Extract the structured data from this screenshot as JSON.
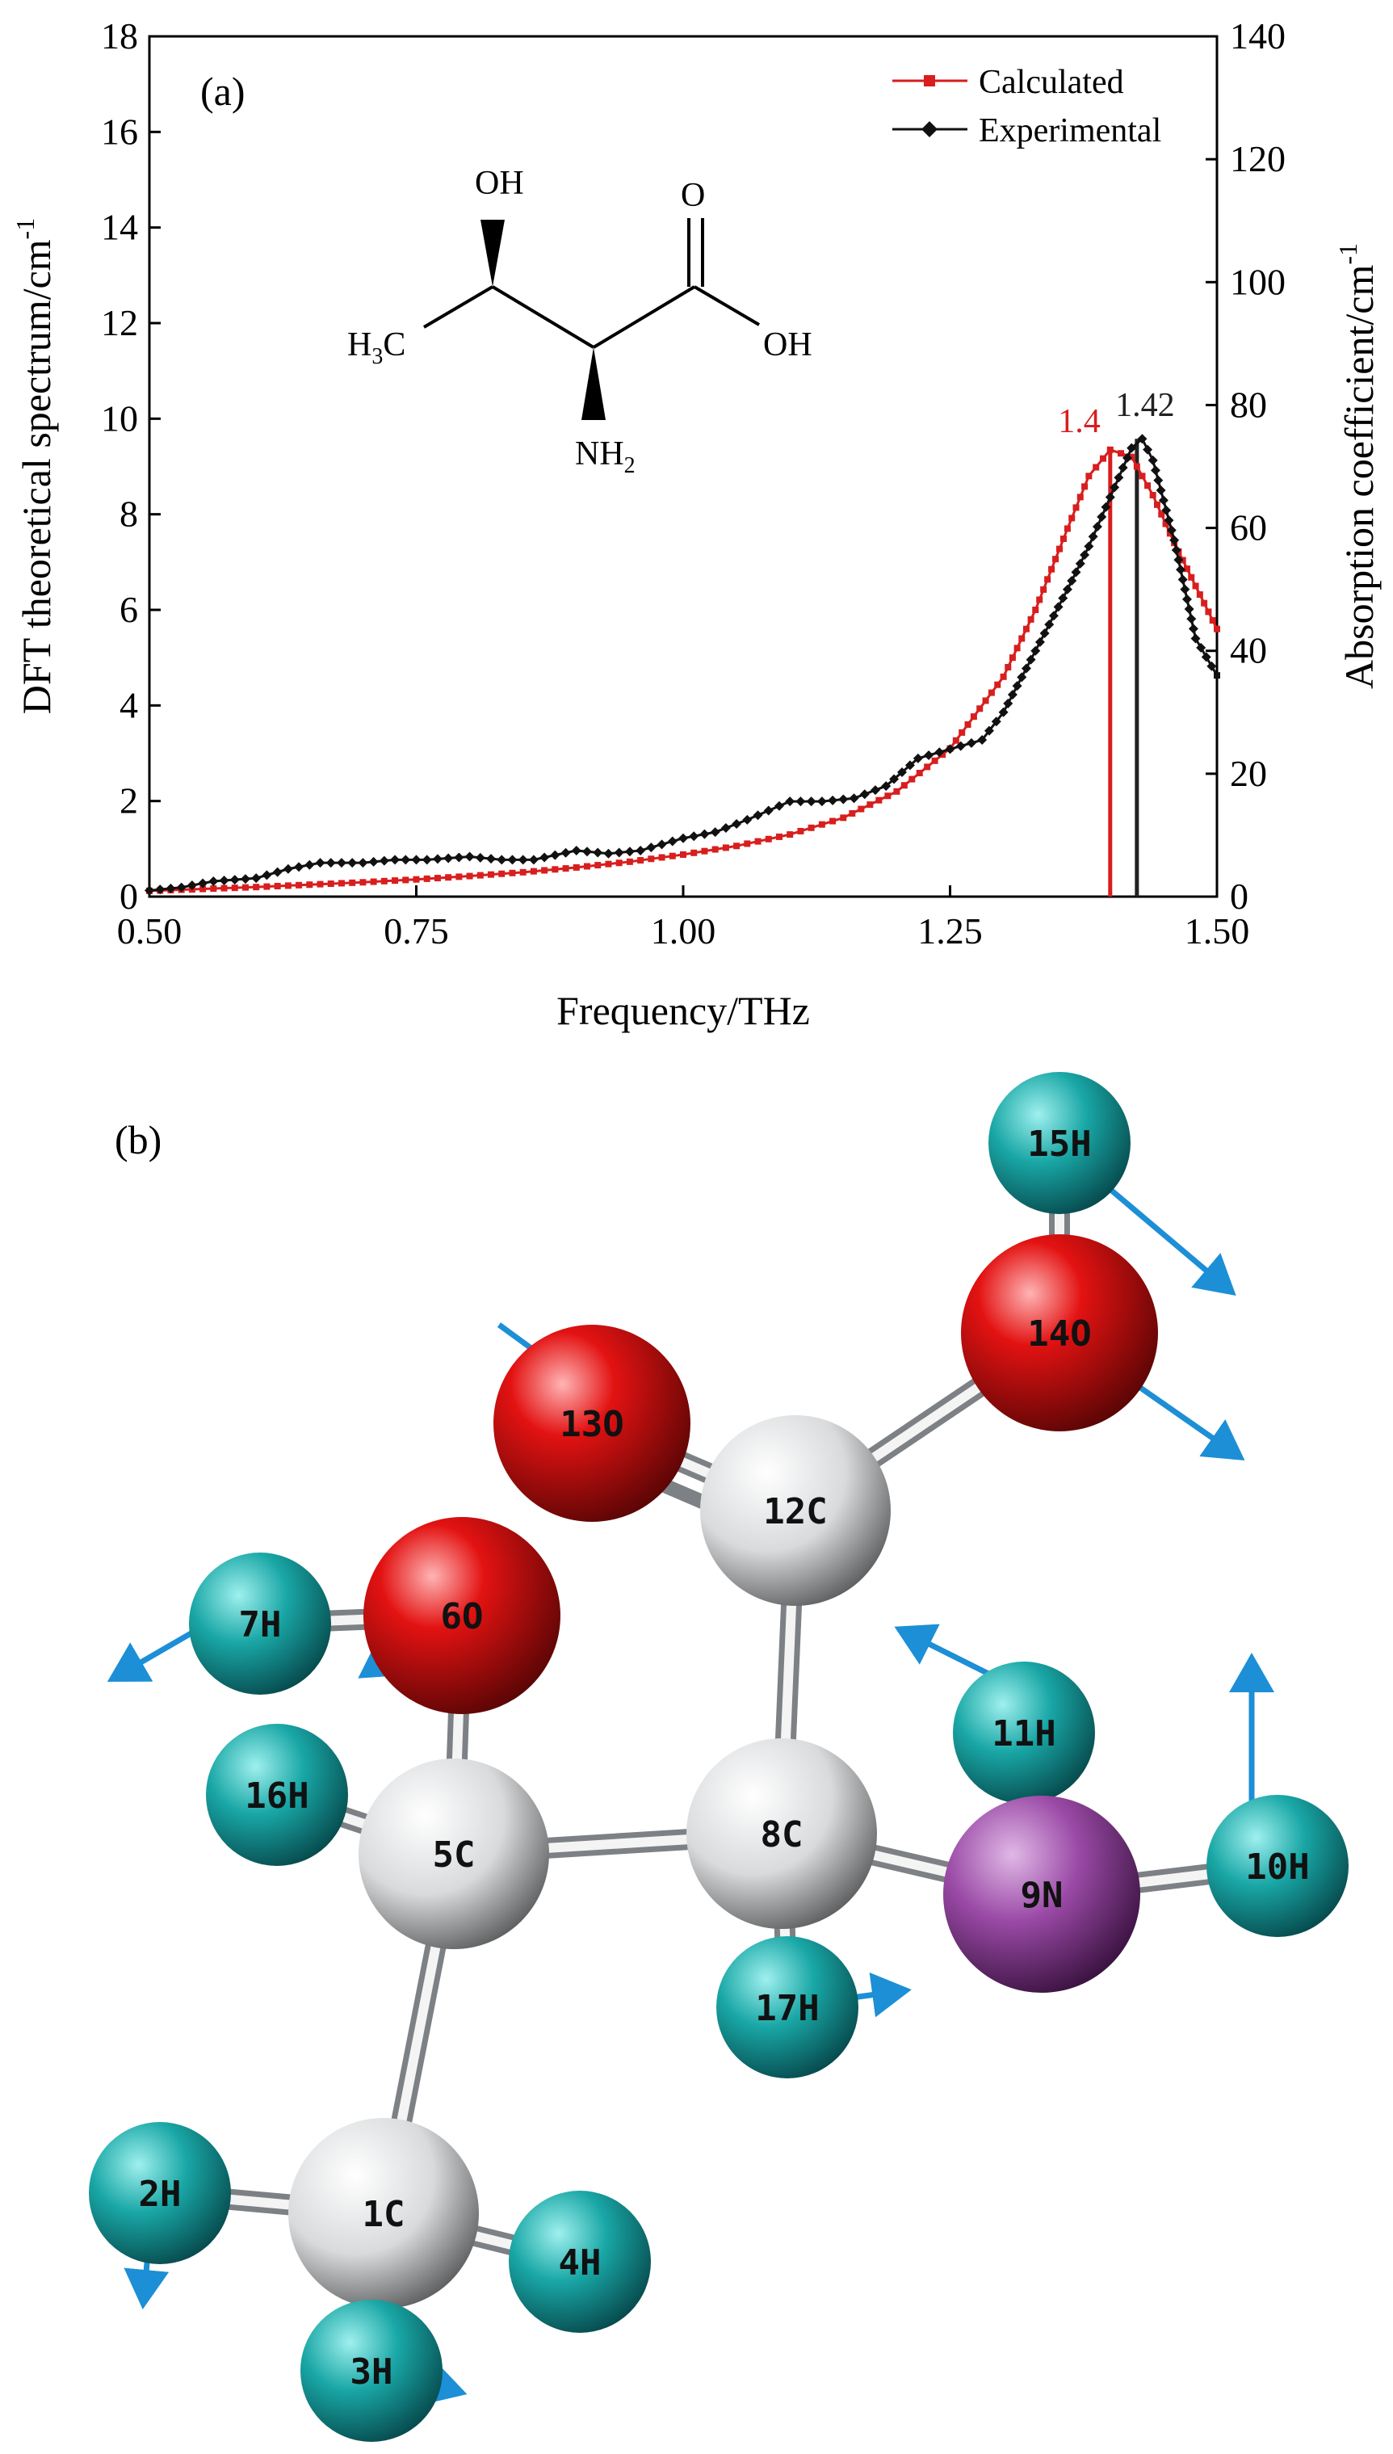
{
  "chart_data": {
    "type": "line",
    "panel_label": "(a)",
    "xlabel": "Frequency/THz",
    "ylabel_left": "DFT theoretical spectrum/cm",
    "ylabel_left_sup": "-1",
    "ylabel_right": "Absorption coefficient/cm",
    "ylabel_right_sup": "-1",
    "xlim": [
      0.5,
      1.5
    ],
    "ylim_left": [
      0,
      18
    ],
    "ylim_right": [
      0,
      140
    ],
    "xticks": [
      "0.50",
      "0.75",
      "1.00",
      "1.25",
      "1.50"
    ],
    "yticks_left": [
      "0",
      "2",
      "4",
      "6",
      "8",
      "10",
      "12",
      "14",
      "16",
      "18"
    ],
    "yticks_right": [
      "0",
      "20",
      "40",
      "60",
      "80",
      "100",
      "120",
      "140"
    ],
    "legend_position": "top-right",
    "series": [
      {
        "name": "Calculated",
        "color": "#d81e1e",
        "marker": "square",
        "axis": "left",
        "x": [
          0.5,
          0.55,
          0.6,
          0.65,
          0.7,
          0.75,
          0.8,
          0.85,
          0.9,
          0.95,
          1.0,
          1.05,
          1.1,
          1.15,
          1.2,
          1.25,
          1.3,
          1.33,
          1.36,
          1.38,
          1.4,
          1.42,
          1.44,
          1.46,
          1.48,
          1.5
        ],
        "values": [
          0.12,
          0.16,
          0.2,
          0.25,
          0.3,
          0.36,
          0.43,
          0.51,
          0.61,
          0.73,
          0.88,
          1.06,
          1.3,
          1.65,
          2.2,
          3.1,
          4.6,
          6.0,
          7.7,
          8.8,
          9.35,
          9.2,
          8.4,
          7.4,
          6.5,
          5.6
        ]
      },
      {
        "name": "Experimental",
        "color": "#111111",
        "marker": "diamond",
        "axis": "right",
        "x": [
          0.5,
          0.53,
          0.56,
          0.6,
          0.63,
          0.66,
          0.7,
          0.73,
          0.76,
          0.8,
          0.83,
          0.86,
          0.9,
          0.93,
          0.96,
          1.0,
          1.03,
          1.06,
          1.1,
          1.13,
          1.16,
          1.19,
          1.22,
          1.25,
          1.28,
          1.3,
          1.33,
          1.36,
          1.38,
          1.4,
          1.42,
          1.43,
          1.44,
          1.46,
          1.48,
          1.5
        ],
        "values": [
          1.0,
          1.5,
          2.5,
          3.0,
          4.5,
          5.5,
          5.5,
          6.0,
          6.0,
          6.5,
          6.0,
          6.0,
          7.5,
          7.0,
          7.5,
          9.5,
          10.5,
          12.5,
          15.5,
          15.5,
          16.0,
          18.0,
          22.5,
          24.0,
          25.5,
          30.0,
          40.0,
          50.0,
          57.0,
          65.0,
          73.0,
          74.5,
          71.0,
          58.0,
          42.0,
          36.0
        ]
      }
    ],
    "annotations": [
      {
        "text": "1.4",
        "x": 1.4,
        "color": "#d81e1e"
      },
      {
        "text": "1.42",
        "x": 1.425,
        "color": "#222222"
      }
    ],
    "molecule_labels": {
      "oh": "OH",
      "o": "O",
      "acid_oh": "OH",
      "methyl_main": "H",
      "methyl_sub": "3",
      "methyl_c": "C",
      "amine_main": "NH",
      "amine_sub": "2"
    }
  },
  "structure": {
    "panel_label": "(b)",
    "atoms": [
      {
        "label": "1C",
        "element": "C"
      },
      {
        "label": "2H",
        "element": "H"
      },
      {
        "label": "3H",
        "element": "H"
      },
      {
        "label": "4H",
        "element": "H"
      },
      {
        "label": "5C",
        "element": "C"
      },
      {
        "label": "6O",
        "element": "O"
      },
      {
        "label": "7H",
        "element": "H"
      },
      {
        "label": "8C",
        "element": "C"
      },
      {
        "label": "9N",
        "element": "N"
      },
      {
        "label": "10H",
        "element": "H"
      },
      {
        "label": "11H",
        "element": "H"
      },
      {
        "label": "12C",
        "element": "C"
      },
      {
        "label": "13O",
        "element": "O"
      },
      {
        "label": "14O",
        "element": "O"
      },
      {
        "label": "15H",
        "element": "H"
      },
      {
        "label": "16H",
        "element": "H"
      },
      {
        "label": "17H",
        "element": "H"
      }
    ],
    "element_colors": {
      "C": "#e6e8ea",
      "H": "#1aa3a3",
      "O": "#e10f0f",
      "N": "#9a4aa6"
    },
    "arrow_color": "#1c8fd6"
  }
}
